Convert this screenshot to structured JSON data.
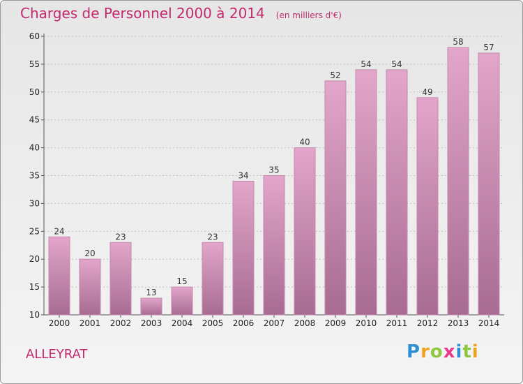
{
  "title": "Charges de Personnel 2000 à 2014",
  "unit": "(en milliers d'€)",
  "commune": "ALLEYRAT",
  "logo": {
    "letters": [
      "P",
      "r",
      "o",
      "x",
      "i",
      "t",
      "i"
    ],
    "colors": [
      "#2e8fd0",
      "#f0a020",
      "#8dc63f",
      "#e83a8c",
      "#2e8fd0",
      "#8dc63f",
      "#f0a020"
    ]
  },
  "colors": {
    "bar_top": "#e3a6ca",
    "bar_bottom": "#a86b92",
    "bar_edge": "#c28bae",
    "title": "#c2296e"
  },
  "chart_data": {
    "type": "bar",
    "title": "Charges de Personnel 2000 à 2014",
    "subtitle": "(en milliers d'€)",
    "categories": [
      "2000",
      "2001",
      "2002",
      "2003",
      "2004",
      "2005",
      "2006",
      "2007",
      "2008",
      "2009",
      "2010",
      "2011",
      "2012",
      "2013",
      "2014"
    ],
    "values": [
      24,
      20,
      23,
      13,
      15,
      23,
      34,
      35,
      40,
      52,
      54,
      54,
      49,
      58,
      57
    ],
    "ylim": [
      10,
      60
    ],
    "yticks": [
      10,
      15,
      20,
      25,
      30,
      35,
      40,
      45,
      50,
      55,
      60
    ],
    "grid": true,
    "xlabel": "",
    "ylabel": ""
  }
}
